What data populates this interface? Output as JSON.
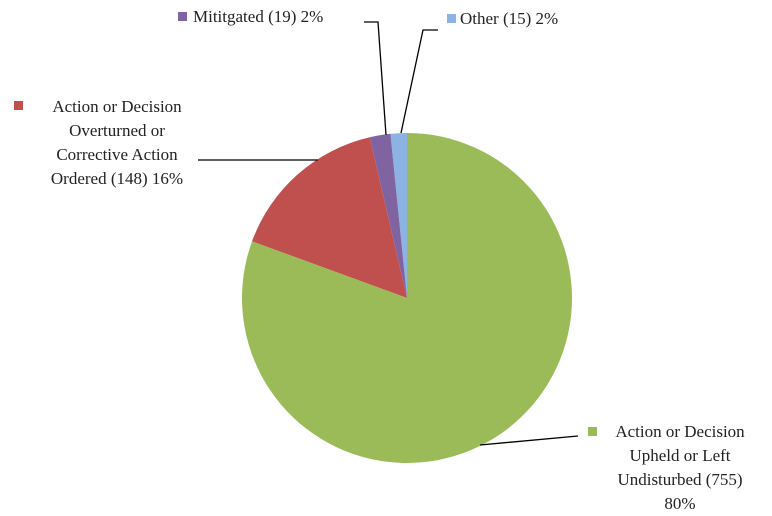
{
  "chart_data": {
    "type": "pie",
    "categories": [
      "Action or Decision Upheld or Left Undisturbed (755) 80%",
      "Action or Decision Overturned or Corrective Action Ordered (148) 16%",
      "Mititgated (19) 2%",
      "Other (15) 2%"
    ],
    "values": [
      755,
      148,
      19,
      15
    ],
    "colors": [
      "#9bbb59",
      "#c0504d",
      "#8064a2",
      "#8db3e2"
    ]
  }
}
